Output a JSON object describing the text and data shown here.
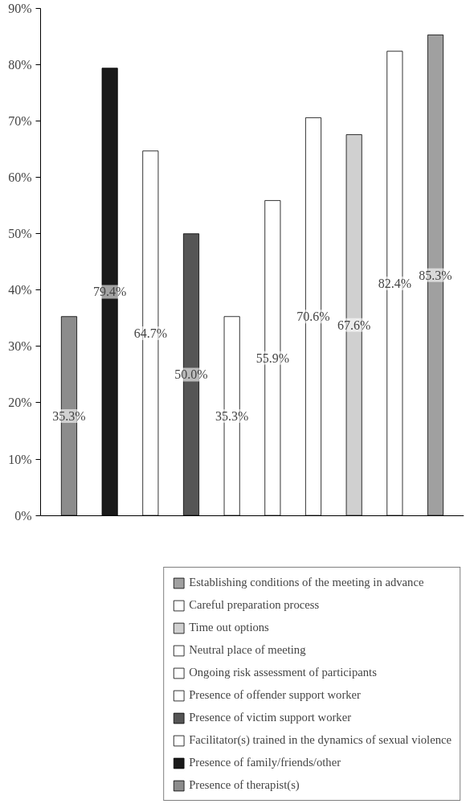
{
  "chart_data": {
    "type": "bar",
    "categories": [
      null,
      null,
      null,
      null,
      null,
      null,
      null,
      null,
      null,
      null
    ],
    "series": [
      {
        "name": "Presence of therapist(s)",
        "color": "#8c8c8c",
        "values": [
          35.3,
          null,
          null,
          null,
          null,
          null,
          null,
          null,
          null,
          null
        ],
        "value_labels": [
          "35.3%",
          null,
          null,
          null,
          null,
          null,
          null,
          null,
          null,
          null
        ]
      },
      {
        "name": "Presence of family/friends/other",
        "color": "#1a1a1a",
        "values": [
          null,
          79.4,
          null,
          null,
          null,
          null,
          null,
          null,
          null,
          null
        ],
        "value_labels": [
          null,
          "79.4%",
          null,
          null,
          null,
          null,
          null,
          null,
          null,
          null
        ]
      },
      {
        "name": "Facilitator(s) trained in the dynamics of sexual violence",
        "color": "#ffffff",
        "values": [
          null,
          null,
          64.7,
          null,
          null,
          null,
          null,
          null,
          null,
          null
        ],
        "value_labels": [
          null,
          null,
          "64.7%",
          null,
          null,
          null,
          null,
          null,
          null,
          null
        ]
      },
      {
        "name": "Presence of victim support worker",
        "color": "#555555",
        "values": [
          null,
          null,
          null,
          50.0,
          null,
          null,
          null,
          null,
          null,
          null
        ],
        "value_labels": [
          null,
          null,
          null,
          "50.0%",
          null,
          null,
          null,
          null,
          null,
          null
        ]
      },
      {
        "name": "Presence of offender support worker",
        "color": "#ffffff",
        "values": [
          null,
          null,
          null,
          null,
          35.3,
          null,
          null,
          null,
          null,
          null
        ],
        "value_labels": [
          null,
          null,
          null,
          null,
          "35.3%",
          null,
          null,
          null,
          null,
          null
        ]
      },
      {
        "name": "Ongoing risk assessment of participants",
        "color": "#ffffff",
        "values": [
          null,
          null,
          null,
          null,
          null,
          55.9,
          null,
          null,
          null,
          null
        ],
        "value_labels": [
          null,
          null,
          null,
          null,
          null,
          "55.9%",
          null,
          null,
          null,
          null
        ]
      },
      {
        "name": "Neutral place of meeting",
        "color": "#ffffff",
        "values": [
          null,
          null,
          null,
          null,
          null,
          null,
          70.6,
          null,
          null,
          null
        ],
        "value_labels": [
          null,
          null,
          null,
          null,
          null,
          null,
          "70.6%",
          null,
          null,
          null
        ]
      },
      {
        "name": "Time out options",
        "color": "#d0d0d0",
        "values": [
          null,
          null,
          null,
          null,
          null,
          null,
          null,
          67.6,
          null,
          null
        ],
        "value_labels": [
          null,
          null,
          null,
          null,
          null,
          null,
          null,
          "67.6%",
          null,
          null
        ]
      },
      {
        "name": "Careful preparation process",
        "color": "#ffffff",
        "values": [
          null,
          null,
          null,
          null,
          null,
          null,
          null,
          null,
          82.4,
          null
        ],
        "value_labels": [
          null,
          null,
          null,
          null,
          null,
          null,
          null,
          null,
          "82.4%",
          null
        ]
      },
      {
        "name": "Establishing conditions of the meeting in advance",
        "color": "#a0a0a0",
        "values": [
          null,
          null,
          null,
          null,
          null,
          null,
          null,
          null,
          null,
          85.3
        ],
        "value_labels": [
          null,
          null,
          null,
          null,
          null,
          null,
          null,
          null,
          null,
          "85.3%"
        ]
      }
    ],
    "ylim": [
      0,
      90
    ],
    "yticks": [
      {
        "value": 0,
        "label": "0%"
      },
      {
        "value": 10,
        "label": "10%"
      },
      {
        "value": 20,
        "label": "20%"
      },
      {
        "value": 30,
        "label": "30%"
      },
      {
        "value": 40,
        "label": "40%"
      },
      {
        "value": 50,
        "label": "50%"
      },
      {
        "value": 60,
        "label": "60%"
      },
      {
        "value": 70,
        "label": "70%"
      },
      {
        "value": 80,
        "label": "80%"
      },
      {
        "value": 90,
        "label": "90%"
      }
    ],
    "grid": false,
    "legend": "bottom"
  }
}
